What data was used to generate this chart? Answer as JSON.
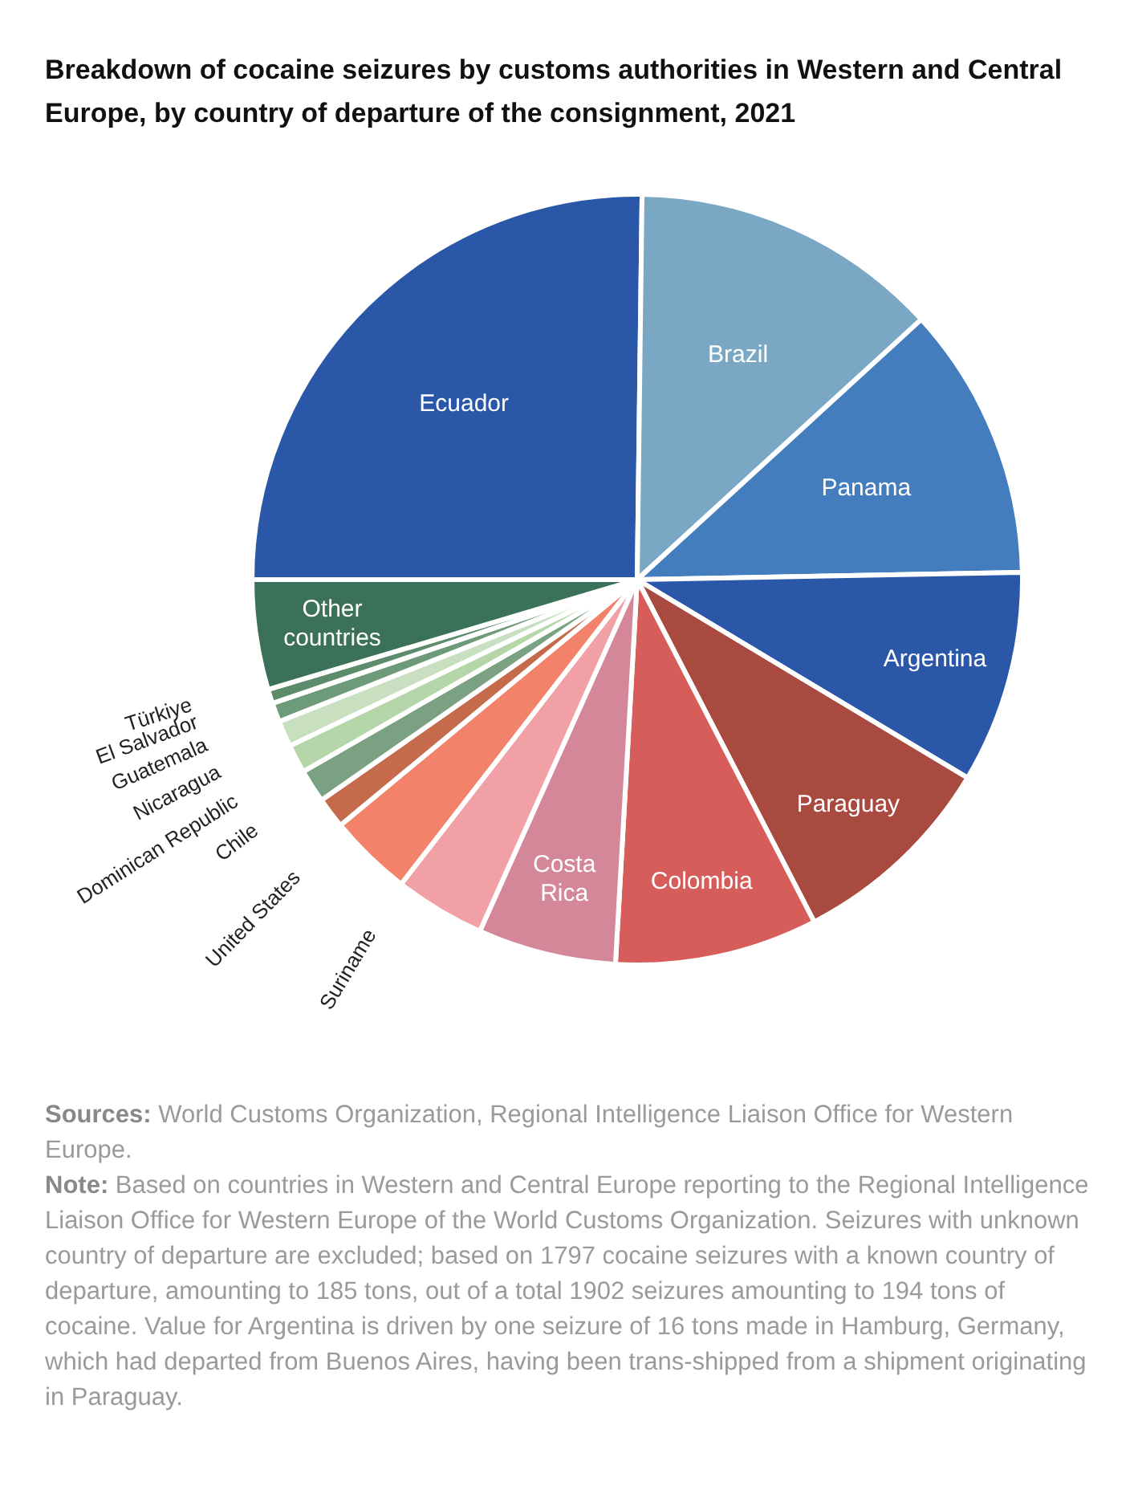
{
  "chart_data": {
    "type": "pie",
    "title": "Breakdown of cocaine seizures by customs authorities in Western and Central Europe, by country of departure of the consignment, 2021",
    "categories": [
      "Ecuador",
      "Brazil",
      "Panama",
      "Argentina",
      "Paraguay",
      "Colombia",
      "Costa Rica",
      "Suriname",
      "United States",
      "Chile",
      "Dominican Republic",
      "Nicaragua",
      "Guatemala",
      "El Salvador",
      "Türkiye",
      "Other countries"
    ],
    "values": [
      25.2,
      13.0,
      11.5,
      8.9,
      8.8,
      8.5,
      5.8,
      3.8,
      3.5,
      1.3,
      1.4,
      1.2,
      1.1,
      0.8,
      0.6,
      4.6
    ],
    "colors": [
      "#2a57a8",
      "#7aa8c4",
      "#447dbd",
      "#2a57a8",
      "#a84a40",
      "#d65d5a",
      "#d5879a",
      "#f1a0a6",
      "#f2826a",
      "#c66a4c",
      "#7aa181",
      "#b4d6a8",
      "#c8dfc0",
      "#6d9a78",
      "#5c8c6c",
      "#3a7158"
    ],
    "legend": false,
    "annotations": [
      "Sources: World Customs Organization, Regional Intelligence Liaison Office for Western Europe.",
      "Note: Based on countries in Western and Central Europe reporting to the Regional Intelligence Liaison Office for Western Europe of the World Customs Organization. Seizures with unknown country of departure are excluded; based on 1797 cocaine seizures with a known country of departure, amounting to 185 tons, out of a total 1902 seizures amounting to 194 tons of cocaine. Value for Argentina is driven by one seizure of 16 tons made in Hamburg, Germany, which had departed from Buenos Aires, having been trans-shipped from a shipment originating in Paraguay."
    ]
  }
}
